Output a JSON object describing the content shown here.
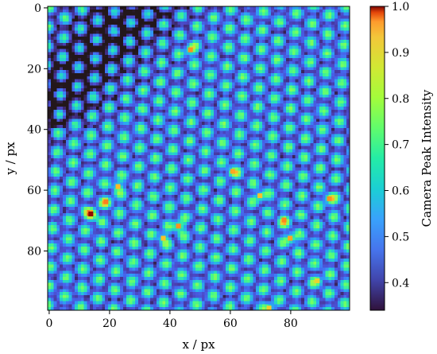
{
  "chart_data": {
    "type": "heatmap",
    "title": "",
    "xlabel": "x / px",
    "ylabel": "y / px",
    "xlim": [
      0,
      100
    ],
    "ylim": [
      100,
      0
    ],
    "x_ticks": [
      "0",
      "20",
      "40",
      "60",
      "80"
    ],
    "y_ticks": [
      "0",
      "20",
      "40",
      "60",
      "80"
    ],
    "colorbar": {
      "label": "Camera Peak Intensity",
      "range": [
        0.34,
        1.0
      ],
      "ticks": [
        "0.4",
        "0.5",
        "0.6",
        "0.7",
        "0.8",
        "0.9",
        "1.0"
      ],
      "colormap": "turbo"
    },
    "grid": {
      "size": [
        100,
        100
      ],
      "pattern": "hexagonal lattice of bright spots",
      "lattice_spacing_px": 6.3,
      "spot_peak_value_typical": 0.62,
      "background_value_typical": 0.45,
      "darkest_region": "upper-left diagonal band, ~0.34"
    },
    "highlight_spots": [
      {
        "x": 14,
        "y": 68,
        "value": 1.0
      },
      {
        "x": 47,
        "y": 14,
        "value": 0.82
      },
      {
        "x": 19,
        "y": 64,
        "value": 0.84
      },
      {
        "x": 23,
        "y": 59,
        "value": 0.78
      },
      {
        "x": 43,
        "y": 72,
        "value": 0.82
      },
      {
        "x": 38,
        "y": 76,
        "value": 0.77
      },
      {
        "x": 61,
        "y": 54,
        "value": 0.8
      },
      {
        "x": 70,
        "y": 62,
        "value": 0.77
      },
      {
        "x": 78,
        "y": 70,
        "value": 0.83
      },
      {
        "x": 80,
        "y": 76,
        "value": 0.8
      },
      {
        "x": 93,
        "y": 63,
        "value": 0.82
      },
      {
        "x": 73,
        "y": 99,
        "value": 0.76
      },
      {
        "x": 89,
        "y": 90,
        "value": 0.75
      }
    ]
  }
}
